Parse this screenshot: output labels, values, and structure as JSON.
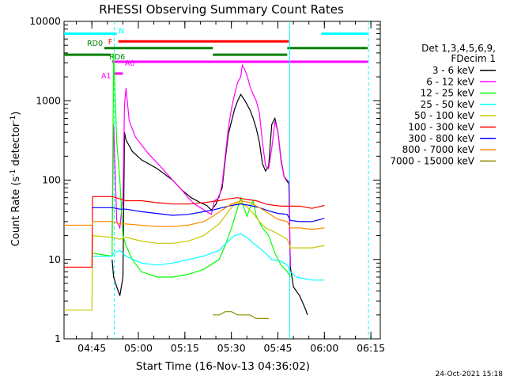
{
  "chart_data": {
    "type": "line",
    "title": "RHESSI Observing Summary Count Rates",
    "xlabel": "Start Time (16-Nov-13 04:36:02)",
    "ylabel_main": "Count Rate (s",
    "ylabel_sup1": "-1",
    "ylabel_mid": " detector",
    "ylabel_sup2": "-1",
    "ylabel_end": ")",
    "x_unit": "minutes since 04:36:02",
    "xlim": [
      0,
      102
    ],
    "ylim": [
      1,
      10000
    ],
    "yscale": "log",
    "x_ticks": [
      {
        "label": "04:45",
        "x": 8.97
      },
      {
        "label": "05:00",
        "x": 23.97
      },
      {
        "label": "05:15",
        "x": 38.97
      },
      {
        "label": "05:30",
        "x": 53.97
      },
      {
        "label": "05:45",
        "x": 68.97
      },
      {
        "label": "06:00",
        "x": 83.97
      },
      {
        "label": "06:15",
        "x": 98.97
      }
    ],
    "y_ticks": [
      {
        "label": "1",
        "y": 1
      },
      {
        "label": "10",
        "y": 10
      },
      {
        "label": "100",
        "y": 100
      },
      {
        "label": "1000",
        "y": 1000
      },
      {
        "label": "10000",
        "y": 10000
      }
    ],
    "legend_position": "right",
    "legend_header": [
      "Det 1,3,4,5,6,9,",
      "FDecim 1"
    ],
    "series": [
      {
        "name": "3 - 6 keV",
        "color": "#000000",
        "points": [
          [
            15.5,
            10
          ],
          [
            16,
            6
          ],
          [
            17,
            4.5
          ],
          [
            18,
            3.5
          ],
          [
            19,
            6
          ],
          [
            19.5,
            400
          ],
          [
            20,
            320
          ],
          [
            22,
            230
          ],
          [
            25,
            180
          ],
          [
            30,
            140
          ],
          [
            35,
            100
          ],
          [
            38,
            75
          ],
          [
            41,
            60
          ],
          [
            44,
            52
          ],
          [
            46,
            48
          ],
          [
            47.5,
            42
          ],
          [
            49,
            50
          ],
          [
            51,
            80
          ],
          [
            52,
            180
          ],
          [
            53,
            380
          ],
          [
            54,
            550
          ],
          [
            55,
            780
          ],
          [
            56,
            1000
          ],
          [
            57,
            1200
          ],
          [
            58,
            1050
          ],
          [
            59,
            900
          ],
          [
            60,
            760
          ],
          [
            61,
            600
          ],
          [
            62,
            450
          ],
          [
            63,
            300
          ],
          [
            64,
            160
          ],
          [
            65,
            130
          ],
          [
            66,
            150
          ],
          [
            67,
            500
          ],
          [
            68,
            600
          ],
          [
            69,
            400
          ],
          [
            70,
            180
          ],
          [
            71,
            110
          ],
          [
            72.5,
            90
          ],
          [
            73,
            8
          ],
          [
            74,
            4.5
          ],
          [
            76,
            3.5
          ],
          [
            78,
            2.3
          ],
          [
            78.5,
            2
          ]
        ]
      },
      {
        "name": "6 - 12 keV",
        "color": "#ff00ff",
        "points": [
          [
            15.5,
            20
          ],
          [
            16,
            500
          ],
          [
            17,
            30
          ],
          [
            18,
            25
          ],
          [
            19,
            60
          ],
          [
            19.5,
            900
          ],
          [
            20,
            1450
          ],
          [
            21,
            560
          ],
          [
            23,
            350
          ],
          [
            27,
            220
          ],
          [
            31,
            150
          ],
          [
            35,
            100
          ],
          [
            38,
            75
          ],
          [
            40,
            60
          ],
          [
            42,
            50
          ],
          [
            44,
            45
          ],
          [
            46,
            40
          ],
          [
            47.5,
            37
          ],
          [
            48.5,
            55
          ],
          [
            50,
            60
          ],
          [
            51,
            90
          ],
          [
            52,
            200
          ],
          [
            53,
            450
          ],
          [
            54,
            800
          ],
          [
            55,
            1200
          ],
          [
            56,
            1700
          ],
          [
            57,
            2000
          ],
          [
            57.5,
            2800
          ],
          [
            58,
            2600
          ],
          [
            59,
            2100
          ],
          [
            60,
            1500
          ],
          [
            61,
            1200
          ],
          [
            62,
            1000
          ],
          [
            63,
            700
          ],
          [
            64,
            300
          ],
          [
            65,
            150
          ],
          [
            66,
            140
          ],
          [
            67,
            250
          ],
          [
            68,
            550
          ],
          [
            69,
            400
          ],
          [
            70,
            170
          ],
          [
            71,
            110
          ],
          [
            72,
            100
          ],
          [
            72.5,
            95
          ],
          [
            73,
            8
          ]
        ]
      },
      {
        "name": "12 - 25 keV",
        "color": "#00ff00",
        "points": [
          [
            9,
            12
          ],
          [
            15.5,
            11
          ],
          [
            16,
            4000
          ],
          [
            17,
            300
          ],
          [
            18,
            100
          ],
          [
            19,
            20
          ],
          [
            20,
            15
          ],
          [
            22,
            10
          ],
          [
            25,
            7
          ],
          [
            30,
            6
          ],
          [
            35,
            6
          ],
          [
            40,
            6.5
          ],
          [
            45,
            7.5
          ],
          [
            50,
            10
          ],
          [
            52,
            15
          ],
          [
            54,
            25
          ],
          [
            56,
            45
          ],
          [
            57,
            60
          ],
          [
            58,
            45
          ],
          [
            59,
            35
          ],
          [
            60,
            45
          ],
          [
            61,
            55
          ],
          [
            62,
            35
          ],
          [
            64,
            25
          ],
          [
            66,
            20
          ],
          [
            68,
            12
          ],
          [
            70,
            8.5
          ],
          [
            72,
            7
          ],
          [
            72.5,
            6.5
          ],
          [
            73,
            6
          ]
        ]
      },
      {
        "name": "25 - 50 keV",
        "color": "#00ffff",
        "points": [
          [
            9,
            11
          ],
          [
            15.5,
            11
          ],
          [
            16,
            12
          ],
          [
            18,
            13
          ],
          [
            20,
            11
          ],
          [
            25,
            9
          ],
          [
            30,
            8.5
          ],
          [
            35,
            9
          ],
          [
            40,
            10
          ],
          [
            45,
            11
          ],
          [
            50,
            13
          ],
          [
            53,
            17
          ],
          [
            55,
            20
          ],
          [
            57,
            21
          ],
          [
            59,
            19
          ],
          [
            61,
            16
          ],
          [
            63,
            14
          ],
          [
            65,
            12
          ],
          [
            67,
            10
          ],
          [
            70,
            9.5
          ],
          [
            72,
            8.5
          ],
          [
            73,
            7
          ],
          [
            75,
            6
          ],
          [
            80,
            5.5
          ],
          [
            84,
            5.5
          ]
        ]
      },
      {
        "name": "50 - 100 keV",
        "color": "#c8c800",
        "points": [
          [
            0,
            2.3
          ],
          [
            9,
            2.3
          ],
          [
            9.2,
            20
          ],
          [
            15.5,
            19
          ],
          [
            18,
            18
          ],
          [
            20,
            19
          ],
          [
            25,
            17
          ],
          [
            30,
            16
          ],
          [
            35,
            16
          ],
          [
            40,
            17
          ],
          [
            45,
            20
          ],
          [
            50,
            28
          ],
          [
            53,
            40
          ],
          [
            55,
            50
          ],
          [
            57,
            52
          ],
          [
            59,
            46
          ],
          [
            61,
            38
          ],
          [
            63,
            30
          ],
          [
            65,
            25
          ],
          [
            68,
            22
          ],
          [
            70,
            20
          ],
          [
            72,
            18
          ],
          [
            73,
            14
          ],
          [
            76,
            14
          ],
          [
            80,
            14
          ],
          [
            84,
            15
          ]
        ]
      },
      {
        "name": "100 - 300 keV",
        "color": "#ff0000",
        "points": [
          [
            0,
            8
          ],
          [
            9,
            8
          ],
          [
            9.2,
            62
          ],
          [
            15.5,
            62
          ],
          [
            18,
            58
          ],
          [
            20,
            55
          ],
          [
            25,
            55
          ],
          [
            30,
            52
          ],
          [
            35,
            50
          ],
          [
            40,
            50
          ],
          [
            45,
            52
          ],
          [
            50,
            55
          ],
          [
            53,
            58
          ],
          [
            56,
            60
          ],
          [
            59,
            57
          ],
          [
            62,
            55
          ],
          [
            65,
            50
          ],
          [
            68,
            48
          ],
          [
            70,
            47
          ],
          [
            72,
            47
          ],
          [
            73,
            47
          ],
          [
            76,
            47
          ],
          [
            80,
            44
          ],
          [
            84,
            48
          ]
        ]
      },
      {
        "name": "300 - 800 keV",
        "color": "#0000ff",
        "points": [
          [
            9,
            45
          ],
          [
            15.5,
            45
          ],
          [
            18,
            43
          ],
          [
            20,
            43
          ],
          [
            25,
            40
          ],
          [
            30,
            38
          ],
          [
            35,
            36
          ],
          [
            40,
            37
          ],
          [
            45,
            40
          ],
          [
            48,
            42
          ],
          [
            51,
            45
          ],
          [
            54,
            48
          ],
          [
            57,
            50
          ],
          [
            60,
            48
          ],
          [
            63,
            45
          ],
          [
            66,
            41
          ],
          [
            69,
            38
          ],
          [
            72,
            37
          ],
          [
            73,
            31
          ],
          [
            76,
            30
          ],
          [
            80,
            30
          ],
          [
            84,
            33
          ]
        ]
      },
      {
        "name": "800 - 7000 keV",
        "color": "#ff8c00",
        "points": [
          [
            0,
            27
          ],
          [
            9,
            27
          ],
          [
            9.2,
            30
          ],
          [
            15.5,
            30
          ],
          [
            18,
            28
          ],
          [
            20,
            28
          ],
          [
            25,
            27
          ],
          [
            30,
            26
          ],
          [
            35,
            26
          ],
          [
            40,
            27
          ],
          [
            45,
            30
          ],
          [
            48,
            35
          ],
          [
            51,
            42
          ],
          [
            54,
            50
          ],
          [
            57,
            55
          ],
          [
            60,
            52
          ],
          [
            63,
            45
          ],
          [
            66,
            38
          ],
          [
            69,
            32
          ],
          [
            72,
            30
          ],
          [
            73,
            25
          ],
          [
            76,
            25
          ],
          [
            80,
            24
          ],
          [
            84,
            25
          ]
        ]
      },
      {
        "name": "7000 - 15000 keV",
        "color": "#8b8b00",
        "points": [
          [
            48,
            2
          ],
          [
            50,
            2
          ],
          [
            52,
            2.2
          ],
          [
            54,
            2.2
          ],
          [
            56,
            2
          ],
          [
            58,
            2
          ],
          [
            60,
            2
          ],
          [
            62,
            1.8
          ],
          [
            64,
            1.8
          ],
          [
            66,
            1.8
          ]
        ]
      }
    ],
    "attenuator_bars": [
      {
        "label": "N",
        "color": "#00ffff",
        "y": 7000,
        "segments": [
          [
            0,
            17
          ],
          [
            83,
            98
          ]
        ]
      },
      {
        "label": "F",
        "color": "#ff0000",
        "y": 5600,
        "segments": [
          [
            17.5,
            72.5
          ]
        ]
      },
      {
        "label": "RD0",
        "color": "#008000",
        "y": 4600,
        "segments": [
          [
            13,
            48
          ],
          [
            72,
            98
          ]
        ]
      },
      {
        "label": "RD6",
        "color": "#008000",
        "y": 3800,
        "segments": [
          [
            0,
            15
          ],
          [
            48,
            72
          ]
        ]
      },
      {
        "label": "A0",
        "color": "#ff00ff",
        "y": 3100,
        "segments": [
          [
            15.5,
            98
          ]
        ]
      },
      {
        "label": "A1",
        "color": "#ff00ff",
        "y": 2200,
        "segments": [
          [
            16,
            19
          ]
        ]
      }
    ],
    "vertical_lines": [
      {
        "x": 16.2,
        "color": "#00ffff",
        "dashed": true
      },
      {
        "x": 72.8,
        "color": "#00ffff",
        "dashed": false
      },
      {
        "x": 98.2,
        "color": "#00ffff",
        "dashed": true
      }
    ]
  },
  "footer": {
    "timestamp": "24-Oct-2021 15:18"
  }
}
